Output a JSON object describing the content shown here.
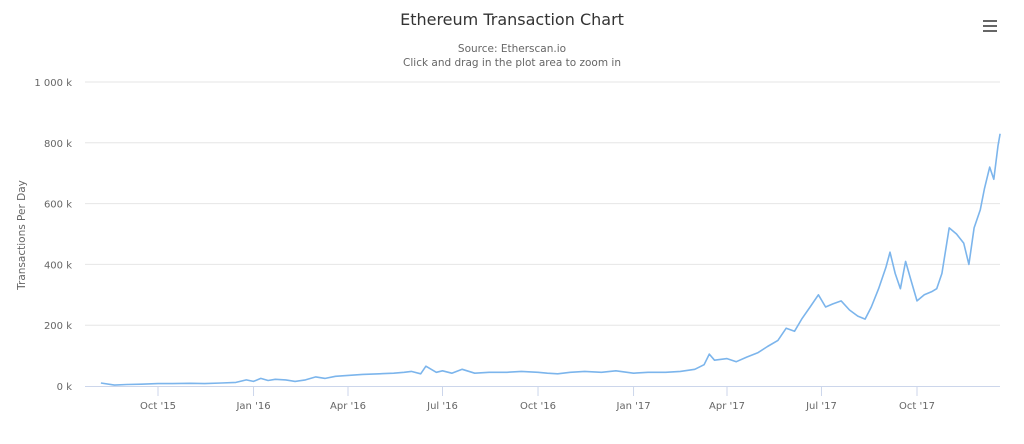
{
  "header": {
    "title": "Ethereum Transaction Chart",
    "subtitle_line1": "Source: Etherscan.io",
    "subtitle_line2": "Click and drag in the plot area to zoom in",
    "menu_icon": "hamburger-menu-icon"
  },
  "colors": {
    "series": "#7cb5ec",
    "grid": "#e6e6e6",
    "axis": "#ccd6eb",
    "text": "#666666",
    "title": "#333333"
  },
  "chart_data": {
    "type": "line",
    "title": "Ethereum Transaction Chart",
    "subtitle": "Source: Etherscan.io",
    "xlabel": "",
    "ylabel": "Transactions Per Day",
    "ylim": [
      0,
      1000000
    ],
    "y_ticks": [
      "0 k",
      "200 k",
      "400 k",
      "600 k",
      "800 k",
      "1 000 k"
    ],
    "x_ticks": [
      "Oct '15",
      "Jan '16",
      "Apr '16",
      "Jul '16",
      "Oct '16",
      "Jan '17",
      "Apr '17",
      "Jul '17",
      "Oct '17"
    ],
    "grid": true,
    "legend": "none",
    "series": [
      {
        "name": "Transactions Per Day",
        "x": [
          "2015-08-07",
          "2015-08-20",
          "2015-09-01",
          "2015-09-15",
          "2015-10-01",
          "2015-10-15",
          "2015-11-01",
          "2015-11-15",
          "2015-12-01",
          "2015-12-15",
          "2015-12-25",
          "2016-01-01",
          "2016-01-08",
          "2016-01-15",
          "2016-01-22",
          "2016-02-01",
          "2016-02-10",
          "2016-02-20",
          "2016-03-01",
          "2016-03-10",
          "2016-03-20",
          "2016-04-01",
          "2016-04-15",
          "2016-05-01",
          "2016-05-15",
          "2016-05-25",
          "2016-06-01",
          "2016-06-10",
          "2016-06-15",
          "2016-06-25",
          "2016-07-01",
          "2016-07-10",
          "2016-07-20",
          "2016-08-01",
          "2016-08-15",
          "2016-09-01",
          "2016-09-15",
          "2016-10-01",
          "2016-10-10",
          "2016-10-20",
          "2016-11-01",
          "2016-11-15",
          "2016-12-01",
          "2016-12-15",
          "2017-01-01",
          "2017-01-15",
          "2017-02-01",
          "2017-02-15",
          "2017-03-01",
          "2017-03-10",
          "2017-03-15",
          "2017-03-20",
          "2017-04-01",
          "2017-04-10",
          "2017-04-20",
          "2017-05-01",
          "2017-05-10",
          "2017-05-20",
          "2017-05-28",
          "2017-06-05",
          "2017-06-12",
          "2017-06-20",
          "2017-06-28",
          "2017-07-05",
          "2017-07-12",
          "2017-07-20",
          "2017-07-28",
          "2017-08-05",
          "2017-08-12",
          "2017-08-18",
          "2017-08-25",
          "2017-09-01",
          "2017-09-05",
          "2017-09-10",
          "2017-09-15",
          "2017-09-20",
          "2017-09-25",
          "2017-10-01",
          "2017-10-08",
          "2017-10-15",
          "2017-10-20",
          "2017-10-25",
          "2017-11-01",
          "2017-11-08",
          "2017-11-15",
          "2017-11-20",
          "2017-11-25",
          "2017-12-01",
          "2017-12-05",
          "2017-12-10",
          "2017-12-14",
          "2017-12-18",
          "2017-12-20"
        ],
        "values": [
          10000,
          3000,
          5000,
          6000,
          8000,
          8000,
          9000,
          8000,
          10000,
          12000,
          20000,
          15000,
          25000,
          18000,
          22000,
          20000,
          15000,
          20000,
          30000,
          25000,
          32000,
          35000,
          38000,
          40000,
          42000,
          45000,
          48000,
          40000,
          65000,
          45000,
          50000,
          42000,
          55000,
          42000,
          45000,
          45000,
          48000,
          45000,
          42000,
          40000,
          45000,
          48000,
          45000,
          50000,
          42000,
          45000,
          45000,
          48000,
          55000,
          70000,
          105000,
          85000,
          90000,
          80000,
          95000,
          110000,
          130000,
          150000,
          190000,
          180000,
          220000,
          260000,
          300000,
          260000,
          270000,
          280000,
          250000,
          230000,
          220000,
          260000,
          320000,
          390000,
          440000,
          370000,
          320000,
          410000,
          350000,
          280000,
          300000,
          310000,
          320000,
          370000,
          520000,
          500000,
          470000,
          400000,
          520000,
          580000,
          650000,
          720000,
          680000,
          790000,
          830000
        ]
      }
    ]
  }
}
